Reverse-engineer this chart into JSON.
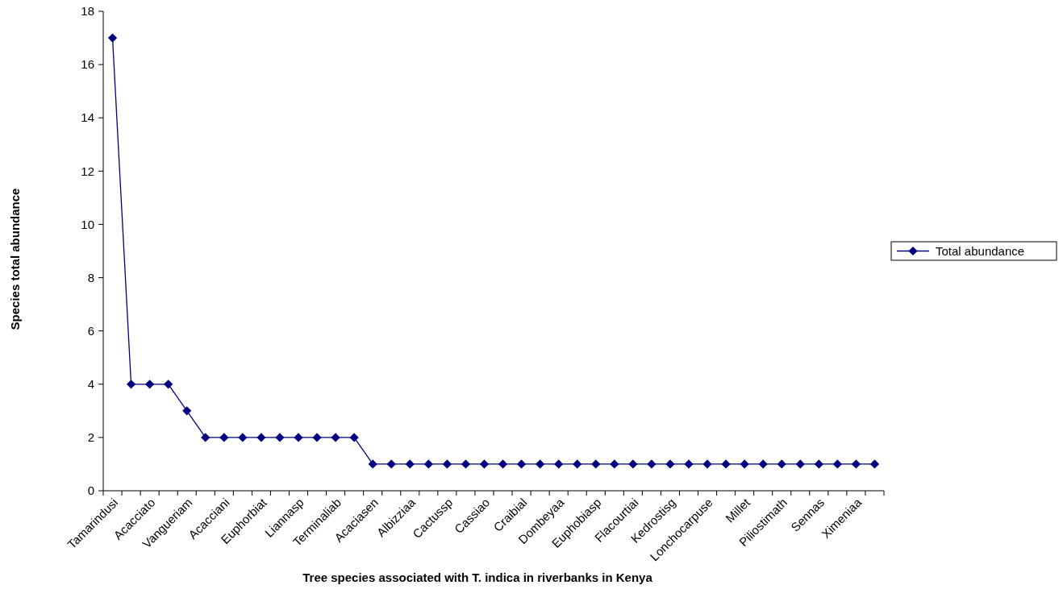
{
  "chart_data": {
    "type": "line",
    "xlabel": "Tree species associated with T. indica in riverbanks in Kenya",
    "ylabel": "Species total abundance",
    "categories": [
      "Tamarindusi",
      null,
      "Acacciato",
      null,
      "Vangueriam",
      null,
      "Acacciani",
      null,
      "Euphorbiat",
      null,
      "Liannasp",
      null,
      "Terminaliab",
      null,
      "Acaciasen",
      null,
      "Albizziaa",
      null,
      "Cactussp",
      null,
      "Cassiao",
      null,
      "Craibial",
      null,
      "Dombeyaa",
      null,
      "Euphobiasp",
      null,
      "Flacourtiai",
      null,
      "Kedrostisg",
      null,
      "Lonchocarpuse",
      null,
      "Millet",
      null,
      "Piliostimath",
      null,
      "Sennas",
      null,
      "Ximeniaa",
      null
    ],
    "series": [
      {
        "name": "Total abundance",
        "color": "#000080",
        "values": [
          17,
          4,
          4,
          4,
          3,
          2,
          2,
          2,
          2,
          2,
          2,
          2,
          2,
          2,
          1,
          1,
          1,
          1,
          1,
          1,
          1,
          1,
          1,
          1,
          1,
          1,
          1,
          1,
          1,
          1,
          1,
          1,
          1,
          1,
          1,
          1,
          1,
          1,
          1,
          1,
          1,
          1
        ]
      }
    ],
    "ylim": [
      0,
      18
    ],
    "yticks": [
      0,
      2,
      4,
      6,
      8,
      10,
      12,
      14,
      16,
      18
    ],
    "grid": false,
    "legend": "right",
    "marker": "diamond",
    "line_style": "solid"
  }
}
